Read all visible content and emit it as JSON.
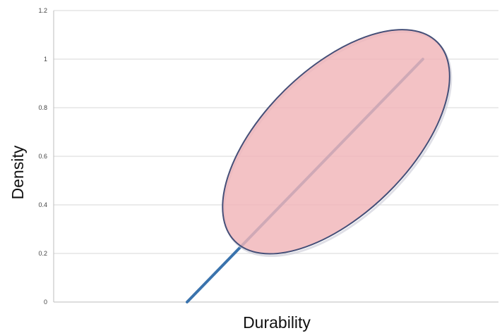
{
  "chart_data": {
    "type": "line",
    "xlabel": "Durability",
    "ylabel": "Density",
    "ylim": [
      0,
      1.2
    ],
    "y_ticks": [
      "0",
      "0.2",
      "0.4",
      "0.6",
      "0.8",
      "1",
      "1.2"
    ],
    "grid": "horizontal",
    "x_tick_labels_shown": false,
    "series": [
      {
        "x": [
          0.3,
          0.83
        ],
        "y": [
          0,
          1
        ],
        "color": "#3a73ad"
      }
    ],
    "annotations": [
      {
        "type": "ellipse",
        "description": "shaded region around the upper part of the line",
        "x_range": [
          0.39,
          0.88
        ],
        "y_range": [
          0.22,
          1.1
        ],
        "fill": "#f0b5b8",
        "stroke": "#454f78"
      }
    ]
  }
}
